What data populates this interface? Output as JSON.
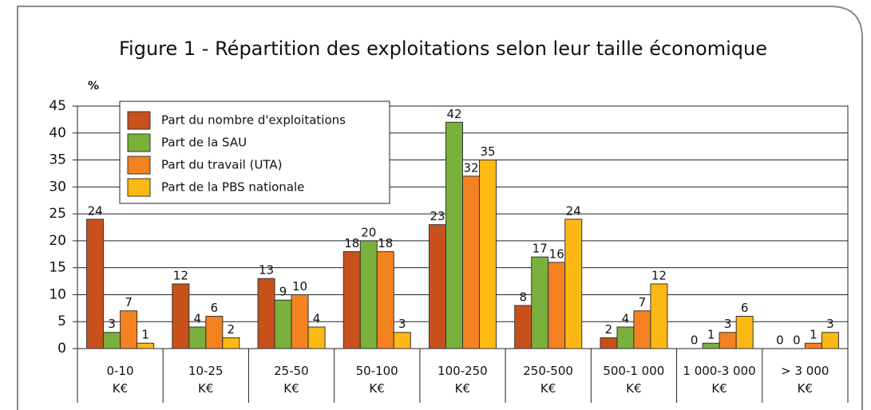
{
  "chart_data": {
    "type": "bar",
    "title": "Figure 1 - Répartition des exploitations selon leur taille économique",
    "ylabel": "%",
    "categories": [
      "0-10\nK€",
      "10-25\nK€",
      "25-50\nK€",
      "50-100\nK€",
      "100-250\nK€",
      "250-500\nK€",
      "500-1 000\nK€",
      "1 000-3 000\nK€",
      "> 3 000\nK€"
    ],
    "series": [
      {
        "name": "Part du nombre d'exploitations",
        "color": "#c8511b",
        "values": [
          24,
          12,
          13,
          18,
          23,
          8,
          2,
          0,
          0
        ]
      },
      {
        "name": "Part de la SAU",
        "color": "#7ab03c",
        "values": [
          3,
          4,
          9,
          20,
          42,
          17,
          4,
          1,
          0
        ]
      },
      {
        "name": "Part du travail (UTA)",
        "color": "#f58220",
        "values": [
          7,
          6,
          10,
          18,
          32,
          16,
          7,
          3,
          1
        ]
      },
      {
        "name": "Part de la PBS nationale",
        "color": "#fdb913",
        "values": [
          1,
          2,
          4,
          3,
          35,
          24,
          12,
          6,
          3
        ]
      }
    ],
    "ylim": [
      0,
      45
    ],
    "yticks": [
      0,
      5,
      10,
      15,
      20,
      25,
      30,
      35,
      40,
      45
    ],
    "grid": true,
    "legend": "upper left"
  }
}
